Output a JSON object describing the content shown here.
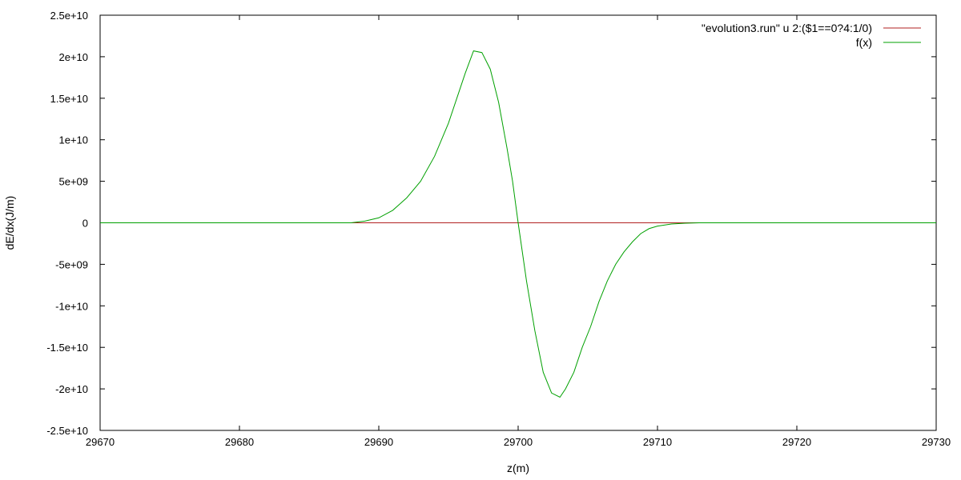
{
  "chart_data": {
    "type": "line",
    "title": "",
    "xlabel": "z(m)",
    "ylabel": "dE/dx(J/m)",
    "xlim": [
      29670,
      29730
    ],
    "ylim": [
      -25000000000.0,
      25000000000.0
    ],
    "x_ticks": [
      {
        "value": 29670,
        "label": "29670"
      },
      {
        "value": 29680,
        "label": "29680"
      },
      {
        "value": 29690,
        "label": "29690"
      },
      {
        "value": 29700,
        "label": "29700"
      },
      {
        "value": 29710,
        "label": "29710"
      },
      {
        "value": 29720,
        "label": "29720"
      },
      {
        "value": 29730,
        "label": "29730"
      }
    ],
    "y_ticks": [
      {
        "value": 25000000000.0,
        "label": "2.5e+10"
      },
      {
        "value": 20000000000.0,
        "label": "2e+10"
      },
      {
        "value": 15000000000.0,
        "label": "1.5e+10"
      },
      {
        "value": 10000000000.0,
        "label": "1e+10"
      },
      {
        "value": 5000000000.0,
        "label": "5e+09"
      },
      {
        "value": 0,
        "label": "0"
      },
      {
        "value": -5000000000.0,
        "label": "-5e+09"
      },
      {
        "value": -10000000000.0,
        "label": "-1e+10"
      },
      {
        "value": -15000000000.0,
        "label": "-1.5e+10"
      },
      {
        "value": -20000000000.0,
        "label": "-2e+10"
      },
      {
        "value": -25000000000.0,
        "label": "-2.5e+10"
      }
    ],
    "grid": false,
    "legend_position": "top-right",
    "series": [
      {
        "name": "\"evolution3.run\" u 2:($1==0?4:1/0)",
        "color": "#b22222",
        "x": [
          29688,
          29728
        ],
        "y": [
          0,
          0
        ]
      },
      {
        "name": "f(x)",
        "color": "#00a000",
        "x": [
          29670,
          29688,
          29689,
          29690,
          29691,
          29692,
          29693,
          29694,
          29695,
          29695.6,
          29696.2,
          29696.8,
          29697.4,
          29698,
          29698.6,
          29699.2,
          29699.6,
          29700,
          29700.6,
          29701.2,
          29701.8,
          29702.4,
          29703,
          29703.4,
          29704,
          29704.6,
          29705.2,
          29705.8,
          29706.4,
          29707,
          29707.6,
          29708.2,
          29708.8,
          29709.4,
          29710,
          29711,
          29712,
          29713,
          29715,
          29730
        ],
        "y": [
          0,
          0,
          200000000.0,
          600000000.0,
          1500000000.0,
          3000000000.0,
          5000000000.0,
          8000000000.0,
          12000000000.0,
          15000000000.0,
          18000000000.0,
          20700000000.0,
          20500000000.0,
          18500000000.0,
          14500000000.0,
          9000000000.0,
          5000000000.0,
          0,
          -7000000000.0,
          -13000000000.0,
          -18000000000.0,
          -20500000000.0,
          -21000000000.0,
          -20000000000.0,
          -18000000000.0,
          -15000000000.0,
          -12500000000.0,
          -9500000000.0,
          -7000000000.0,
          -5000000000.0,
          -3500000000.0,
          -2300000000.0,
          -1300000000.0,
          -700000000.0,
          -400000000.0,
          -150000000.0,
          -50000000.0,
          0,
          0,
          0
        ]
      }
    ]
  }
}
